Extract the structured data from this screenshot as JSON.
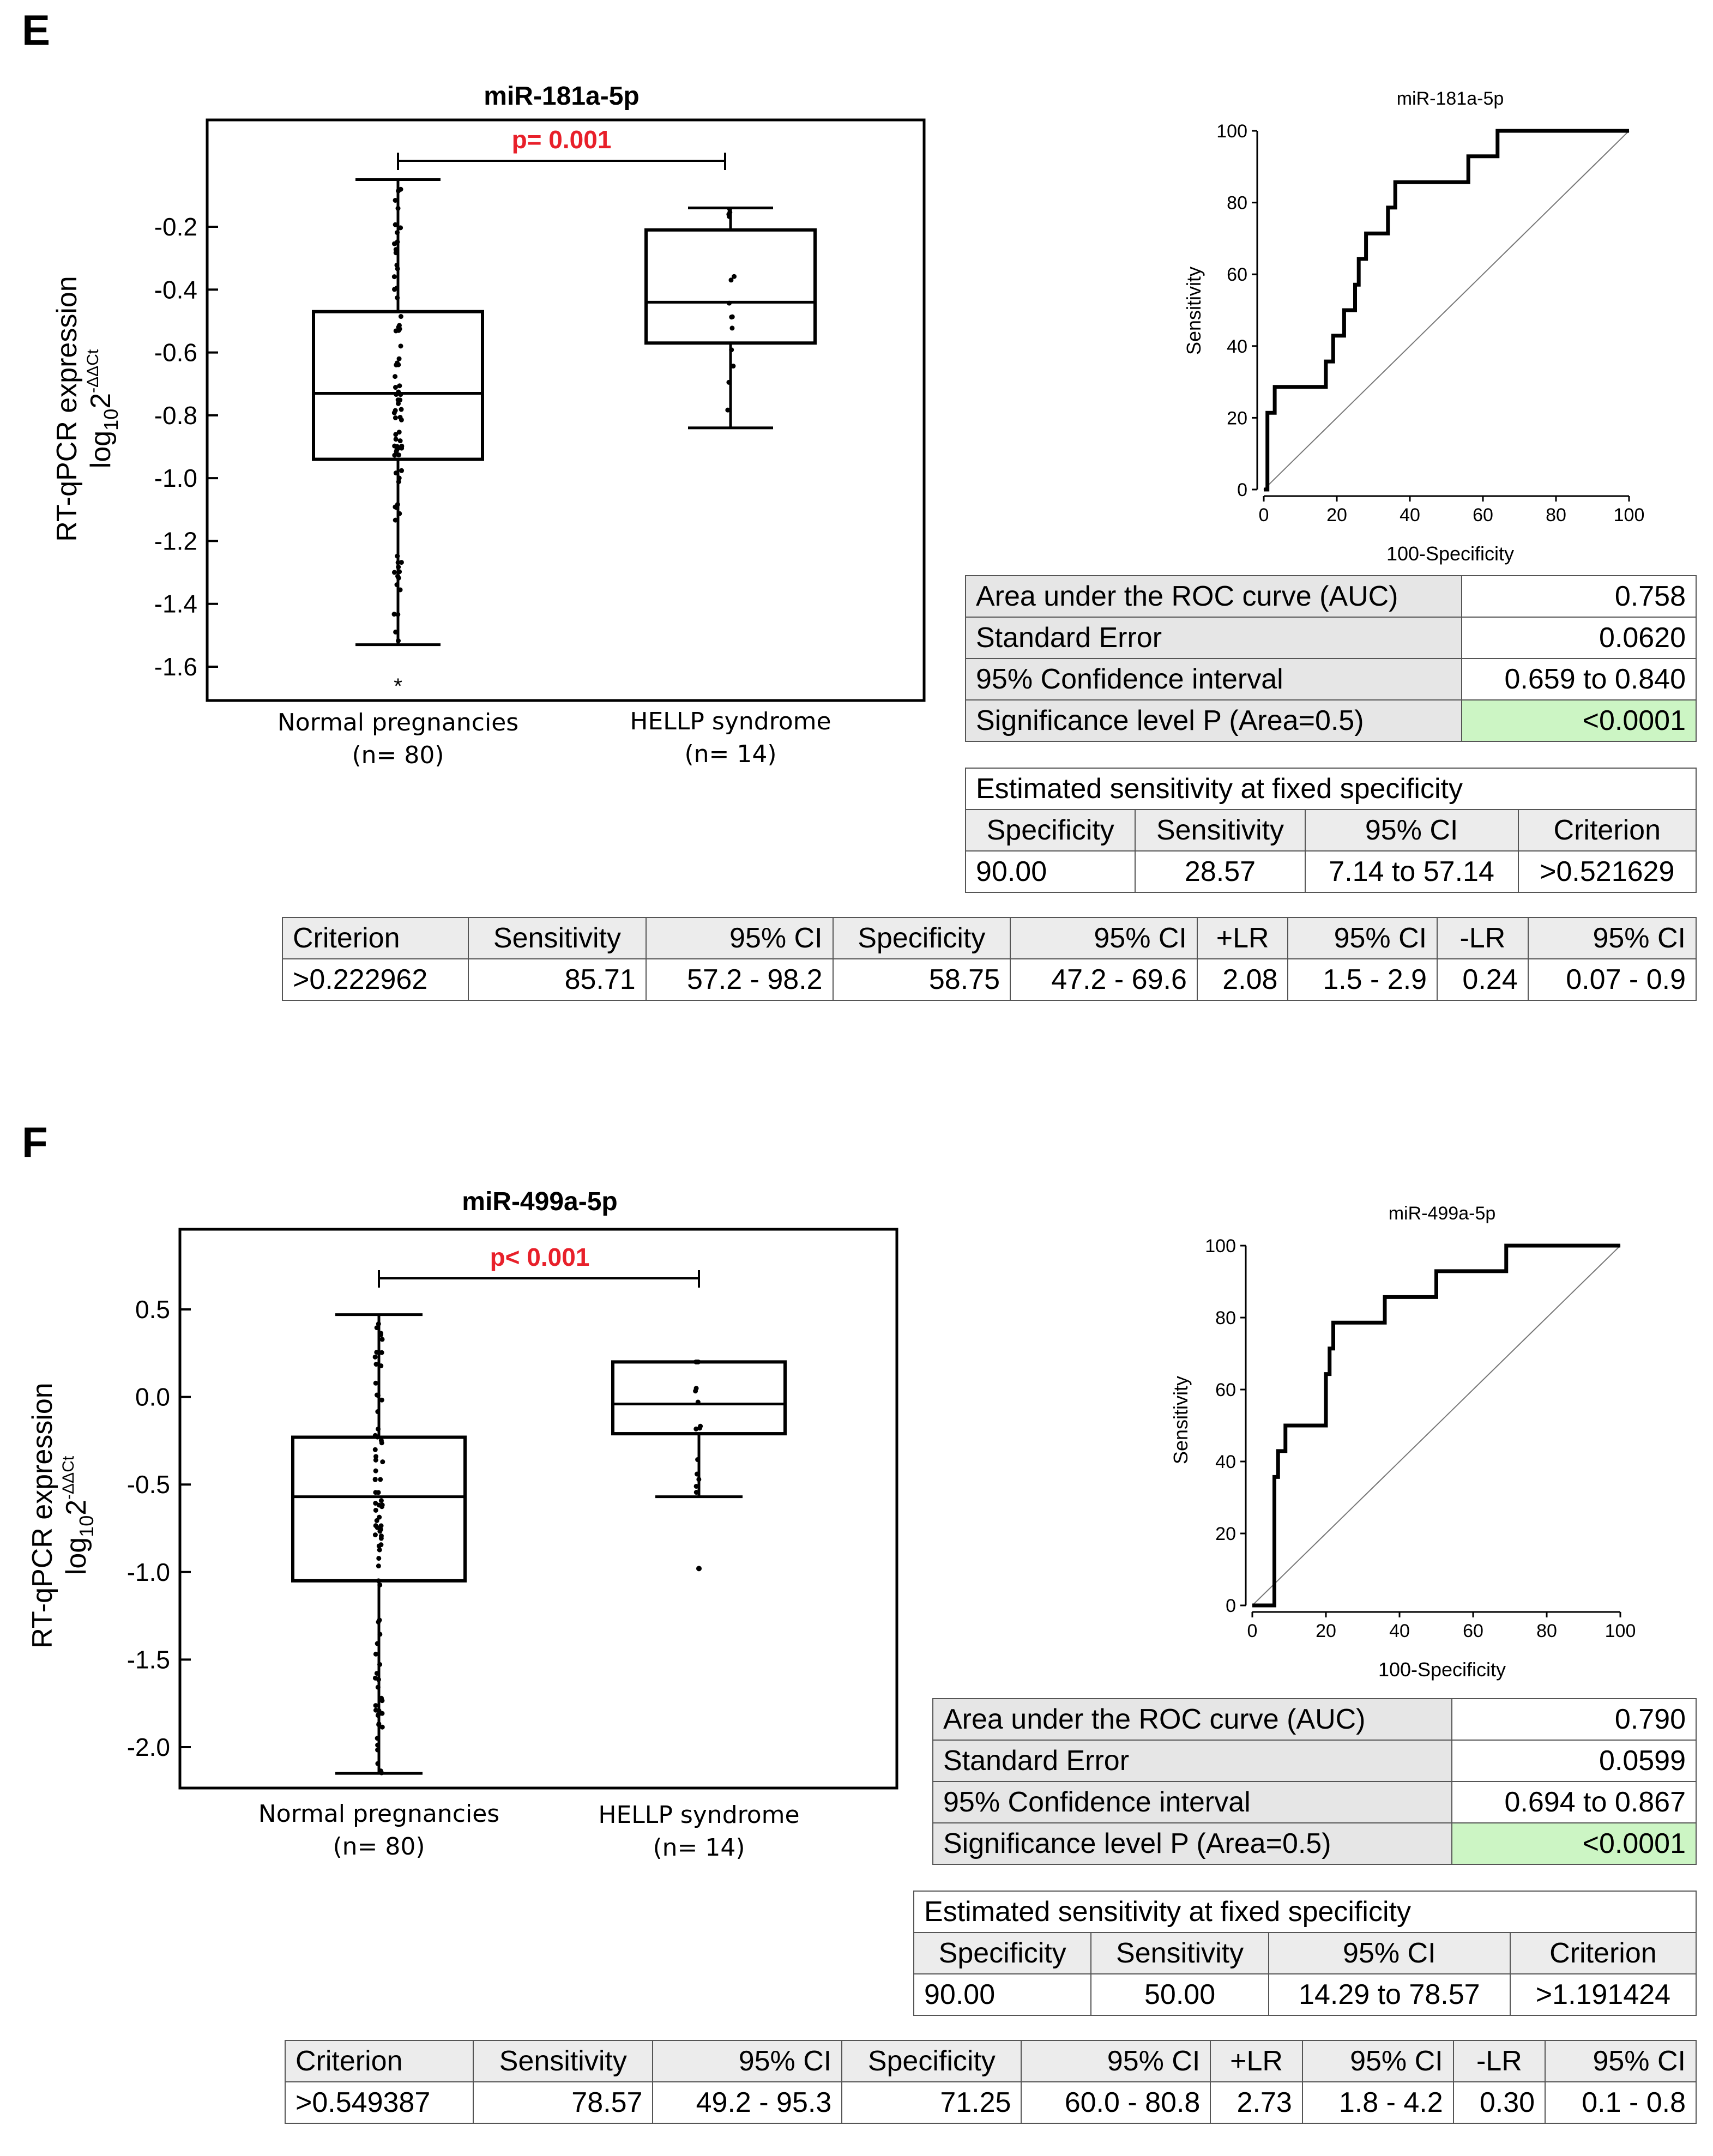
{
  "panels": [
    {
      "letter": "E",
      "box": {
        "title": "miR-181a-5p",
        "ylabel": "RT-qPCR expression",
        "ylabel2": "log",
        "ylabel2_sub": "10",
        "ylabel2_base": "2",
        "ylabel2_sup": "-ΔΔCt",
        "yticks": [
          "-0.2",
          "-0.4",
          "-0.6",
          "-0.8",
          "-1.0",
          "-1.2",
          "-1.4",
          "-1.6"
        ],
        "pvalue": "p= 0.001",
        "groups": [
          {
            "name": "Normal pregnancies",
            "n": "(n= 80)"
          },
          {
            "name": "HELLP syndrome",
            "n": "(n= 14)"
          }
        ],
        "outlier_mark": "*"
      },
      "roc": {
        "title": "miR-181a-5p",
        "xlabel": "100-Specificity",
        "ylabel": "Sensitivity",
        "ticks": [
          "0",
          "20",
          "40",
          "60",
          "80",
          "100"
        ]
      },
      "auc_table": [
        {
          "label": "Area under the ROC curve (AUC)",
          "value": "0.758"
        },
        {
          "label": "Standard Error",
          "value": "0.0620"
        },
        {
          "label": "95% Confidence interval",
          "value": "0.659 to 0.840"
        },
        {
          "label": "Significance level P (Area=0.5)",
          "value": "<0.0001"
        }
      ],
      "est_table": {
        "title": "Estimated sensitivity at fixed specificity",
        "headers": [
          "Specificity",
          "Sensitivity",
          "95% CI",
          "Criterion"
        ],
        "row": [
          "90.00",
          "28.57",
          "7.14 to 57.14",
          ">0.521629"
        ]
      },
      "crit_table": {
        "headers": [
          "Criterion",
          "Sensitivity",
          "95% CI",
          "Specificity",
          "95% CI",
          "+LR",
          "95% CI",
          "-LR",
          "95% CI"
        ],
        "row": [
          ">0.222962",
          "85.71",
          "57.2 - 98.2",
          "58.75",
          "47.2 - 69.6",
          "2.08",
          "1.5 - 2.9",
          "0.24",
          "0.07 - 0.9"
        ]
      }
    },
    {
      "letter": "F",
      "box": {
        "title": "miR-499a-5p",
        "ylabel": "RT-qPCR expression",
        "ylabel2": "log",
        "ylabel2_sub": "10",
        "ylabel2_base": "2",
        "ylabel2_sup": "-ΔΔCt",
        "yticks": [
          "0.5",
          "0.0",
          "-0.5",
          "-1.0",
          "-1.5",
          "-2.0"
        ],
        "pvalue": "p< 0.001",
        "groups": [
          {
            "name": "Normal pregnancies",
            "n": "(n= 80)"
          },
          {
            "name": "HELLP syndrome",
            "n": "(n= 14)"
          }
        ]
      },
      "roc": {
        "title": "miR-499a-5p",
        "xlabel": "100-Specificity",
        "ylabel": "Sensitivity",
        "ticks": [
          "0",
          "20",
          "40",
          "60",
          "80",
          "100"
        ]
      },
      "auc_table": [
        {
          "label": "Area under the ROC curve (AUC)",
          "value": "0.790"
        },
        {
          "label": "Standard Error",
          "value": "0.0599"
        },
        {
          "label": "95% Confidence interval",
          "value": "0.694 to 0.867"
        },
        {
          "label": "Significance level P (Area=0.5)",
          "value": "<0.0001"
        }
      ],
      "est_table": {
        "title": "Estimated sensitivity at fixed specificity",
        "headers": [
          "Specificity",
          "Sensitivity",
          "95% CI",
          "Criterion"
        ],
        "row": [
          "90.00",
          "50.00",
          "14.29 to 78.57",
          ">1.191424"
        ]
      },
      "crit_table": {
        "headers": [
          "Criterion",
          "Sensitivity",
          "95% CI",
          "Specificity",
          "95% CI",
          "+LR",
          "95% CI",
          "-LR",
          "95% CI"
        ],
        "row": [
          ">0.549387",
          "78.57",
          "49.2 - 95.3",
          "71.25",
          "60.0 - 80.8",
          "2.73",
          "1.8 - 4.2",
          "0.30",
          "0.1 - 0.8"
        ]
      }
    }
  ],
  "chart_data": [
    {
      "type": "box",
      "title": "miR-181a-5p",
      "ylabel": "RT-qPCR expression log10 2^-ΔΔCt",
      "categories": [
        "Normal pregnancies (n= 80)",
        "HELLP syndrome (n= 14)"
      ],
      "ylim": [
        -1.7,
        0.0
      ],
      "boxes": [
        {
          "min": -1.53,
          "q1": -0.94,
          "median": -0.73,
          "q3": -0.47,
          "max": -0.05,
          "outliers": [
            -1.65
          ]
        },
        {
          "min": -0.84,
          "q1": -0.57,
          "median": -0.44,
          "q3": -0.21,
          "max": -0.14
        }
      ],
      "annotation": "p= 0.001"
    },
    {
      "type": "line",
      "title": "miR-181a-5p",
      "xlabel": "100-Specificity",
      "ylabel": "Sensitivity",
      "xlim": [
        0,
        100
      ],
      "ylim": [
        0,
        100
      ],
      "series": [
        {
          "x": [
            0,
            1,
            1,
            3,
            3,
            17,
            17,
            19,
            19,
            22,
            22,
            25,
            25,
            26,
            26,
            28,
            28,
            29,
            29,
            34,
            34,
            36,
            36,
            42,
            42,
            56,
            56,
            58,
            58,
            64,
            64,
            66,
            66,
            100
          ],
          "y": [
            0,
            0,
            21.4,
            21.4,
            28.6,
            28.6,
            35.7,
            35.7,
            42.9,
            42.9,
            50,
            50,
            57.1,
            57.1,
            64.3,
            64.3,
            71.4,
            71.4,
            71.4,
            71.4,
            78.6,
            78.6,
            85.7,
            85.7,
            85.7,
            85.7,
            92.9,
            92.9,
            92.9,
            92.9,
            100,
            100,
            100,
            100
          ]
        },
        {
          "x": [
            0,
            100
          ],
          "y": [
            0,
            100
          ]
        }
      ]
    },
    {
      "type": "box",
      "title": "miR-499a-5p",
      "ylabel": "RT-qPCR expression log10 2^-ΔΔCt",
      "categories": [
        "Normal pregnancies (n= 80)",
        "HELLP syndrome (n= 14)"
      ],
      "ylim": [
        -2.35,
        0.75
      ],
      "boxes": [
        {
          "min": -2.15,
          "q1": -1.05,
          "median": -0.57,
          "q3": -0.23,
          "max": 0.47
        },
        {
          "min": -0.57,
          "q1": -0.21,
          "median": -0.04,
          "q3": 0.2,
          "max": 0.2,
          "outliers": [
            -0.98
          ]
        }
      ],
      "annotation": "p< 0.001"
    },
    {
      "type": "line",
      "title": "miR-499a-5p",
      "xlabel": "100-Specificity",
      "ylabel": "Sensitivity",
      "xlim": [
        0,
        100
      ],
      "ylim": [
        0,
        100
      ],
      "series": [
        {
          "x": [
            0,
            6,
            6,
            7,
            7,
            9,
            9,
            20,
            20,
            21,
            21,
            22,
            22,
            36,
            36,
            50,
            50,
            69,
            69,
            100
          ],
          "y": [
            0,
            0,
            35.7,
            35.7,
            42.9,
            42.9,
            50,
            50,
            64.3,
            64.3,
            71.4,
            71.4,
            78.6,
            78.6,
            85.7,
            85.7,
            92.9,
            92.9,
            100,
            100
          ]
        },
        {
          "x": [
            0,
            100
          ],
          "y": [
            0,
            100
          ]
        }
      ]
    }
  ]
}
